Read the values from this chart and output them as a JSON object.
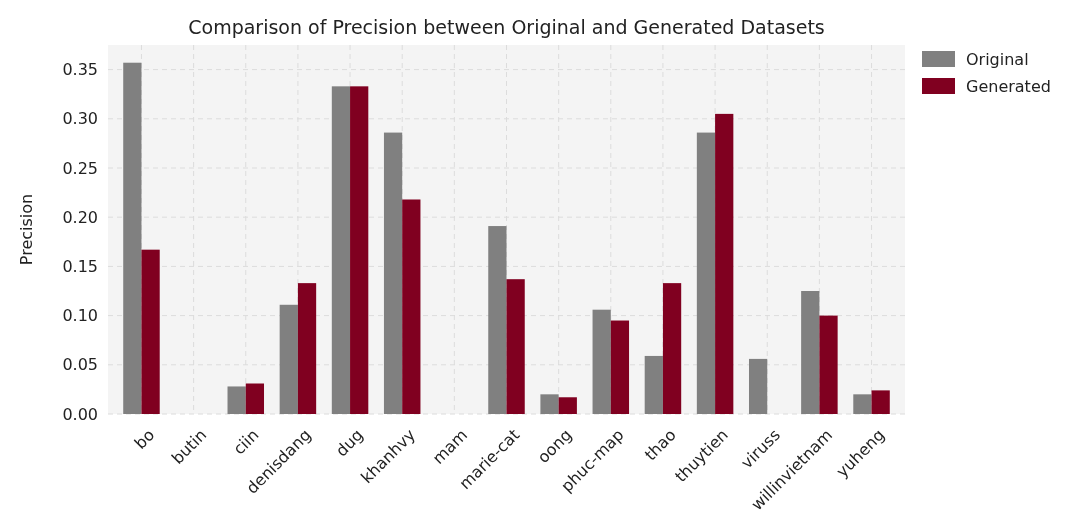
{
  "chart_data": {
    "type": "bar",
    "title": "Comparison of Precision between Original and Generated Datasets",
    "ylabel": "Precision",
    "categories": [
      "bo",
      "butin",
      "ciin",
      "denisdang",
      "dug",
      "khanhvy",
      "mam",
      "marie-cat",
      "oong",
      "phuc-map",
      "thao",
      "thuytien",
      "viruss",
      "willinvietnam",
      "yuheng"
    ],
    "series": [
      {
        "name": "Original",
        "color": "#808080",
        "values": [
          0.357,
          0,
          0.028,
          0.111,
          0.333,
          0.286,
          0,
          0.191,
          0.02,
          0.106,
          0.059,
          0.286,
          0.056,
          0.125,
          0.02
        ]
      },
      {
        "name": "Generated",
        "color": "#800020",
        "values": [
          0.167,
          0,
          0.031,
          0.133,
          0.333,
          0.218,
          0,
          0.137,
          0.017,
          0.095,
          0.133,
          0.305,
          0,
          0.1,
          0.024
        ]
      }
    ],
    "ylim": [
      0,
      0.375
    ],
    "yticks": [
      {
        "value": 0,
        "label": "0.00"
      },
      {
        "value": 0.05,
        "label": "0.05"
      },
      {
        "value": 0.1,
        "label": "0.10"
      },
      {
        "value": 0.15,
        "label": "0.15"
      },
      {
        "value": 0.2,
        "label": "0.20"
      },
      {
        "value": 0.25,
        "label": "0.25"
      },
      {
        "value": 0.3,
        "label": "0.30"
      },
      {
        "value": 0.35,
        "label": "0.35"
      }
    ],
    "grid": true,
    "legend": "top right"
  }
}
